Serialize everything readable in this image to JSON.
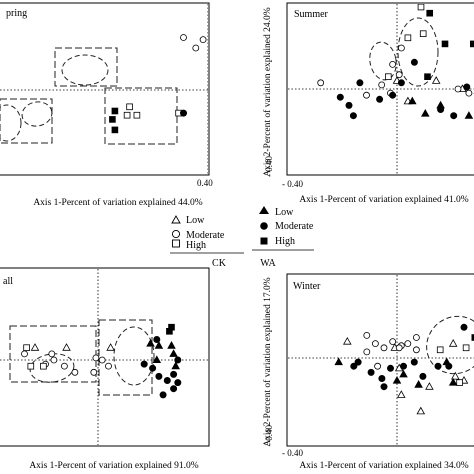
{
  "legend": {
    "rows": [
      {
        "ck": "Low",
        "wa": "Low"
      },
      {
        "ck": "Moderate",
        "wa": "Moderate"
      },
      {
        "ck": "High",
        "wa": "High"
      }
    ],
    "group_ck": "CK",
    "group_wa": "WA"
  },
  "chart_data": [
    {
      "type": "scatter",
      "title": "pring",
      "xlabel": "Axis 1-Percent of variation explained 44.0%",
      "ylabel": "",
      "xlim": [
        -0.44,
        0.44
      ],
      "ylim": [
        -0.42,
        0.44
      ],
      "x_ticks": [
        {
          "value": 0.4,
          "label": "0.40"
        }
      ],
      "y_ticks": [],
      "series": [
        {
          "name": "CK-Low",
          "marker": "triangle",
          "filled": false,
          "points": [
            [
              0.28,
              0.0
            ],
            [
              0.35,
              -0.04
            ],
            [
              0.29,
              -0.02
            ]
          ]
        },
        {
          "name": "CK-Moderate",
          "marker": "circle",
          "filled": false,
          "points": [
            [
              -0.02,
              0.24
            ],
            [
              -0.1,
              0.25
            ],
            [
              0.03,
              0.28
            ],
            [
              0.05,
              0.23
            ],
            [
              0.18,
              -0.08
            ],
            [
              0.22,
              -0.1
            ],
            [
              0.3,
              -0.1
            ],
            [
              0.33,
              -0.1
            ],
            [
              -0.05,
              0.2
            ],
            [
              0.17,
              -0.01
            ]
          ]
        },
        {
          "name": "CK-High",
          "marker": "square",
          "filled": false,
          "points": [
            [
              -0.12,
              -0.11
            ],
            [
              -0.29,
              -0.12
            ],
            [
              -0.33,
              -0.12
            ],
            [
              -0.32,
              -0.08
            ]
          ]
        },
        {
          "name": "WA-Low",
          "marker": "triangle",
          "filled": true,
          "points": [
            [
              0.15,
              0.01
            ],
            [
              0.17,
              0.0
            ],
            [
              0.21,
              -0.04
            ]
          ]
        },
        {
          "name": "WA-Moderate",
          "marker": "circle",
          "filled": true,
          "points": [
            [
              0.03,
              0.3
            ],
            [
              0.05,
              0.26
            ],
            [
              0.1,
              0.23
            ],
            [
              0.12,
              0.2
            ],
            [
              0.08,
              0.28
            ],
            [
              0.4,
              -0.22
            ],
            [
              -0.1,
              -0.11
            ]
          ]
        },
        {
          "name": "WA-High",
          "marker": "square",
          "filled": true,
          "points": [
            [
              0.07,
              0.28
            ],
            [
              -0.38,
              -0.19
            ],
            [
              -0.39,
              -0.14
            ],
            [
              -0.38,
              -0.1
            ]
          ]
        }
      ],
      "annotations": [
        "dashed boxes",
        "dashed ellipses"
      ]
    },
    {
      "type": "scatter",
      "title": "Summer",
      "xlabel": "Axis 1-Percent of variation explained 41.0%",
      "ylabel": "Axis 2-Percent of variation explained 24.0%",
      "xlim": [
        -0.42,
        0.46
      ],
      "ylim": [
        -0.42,
        0.44
      ],
      "x_ticks": [
        {
          "value": -0.4,
          "label": "- 0.40"
        }
      ],
      "y_ticks": [
        {
          "value": -0.4,
          "label": "- 0.40"
        }
      ],
      "series": [
        {
          "name": "CK-Low",
          "marker": "triangle",
          "filled": false,
          "points": [
            [
              0.05,
              -0.06
            ],
            [
              0.18,
              0.04
            ],
            [
              0.3,
              0.0
            ],
            [
              0.37,
              -0.01
            ],
            [
              0.0,
              0.04
            ]
          ]
        },
        {
          "name": "CK-Moderate",
          "marker": "circle",
          "filled": false,
          "points": [
            [
              -0.35,
              0.03
            ],
            [
              -0.07,
              0.02
            ],
            [
              -0.03,
              -0.02
            ],
            [
              -0.14,
              -0.03
            ],
            [
              -0.02,
              0.12
            ],
            [
              0.02,
              0.2
            ],
            [
              0.01,
              0.07
            ],
            [
              0.28,
              0.0
            ],
            [
              0.33,
              -0.02
            ]
          ]
        },
        {
          "name": "CK-High",
          "marker": "square",
          "filled": false,
          "points": [
            [
              0.05,
              0.25
            ],
            [
              0.11,
              0.4
            ],
            [
              0.12,
              0.27
            ],
            [
              -0.04,
              0.06
            ]
          ]
        },
        {
          "name": "WA-Low",
          "marker": "triangle",
          "filled": true,
          "points": [
            [
              0.13,
              -0.12
            ],
            [
              0.2,
              -0.08
            ],
            [
              0.33,
              -0.13
            ],
            [
              0.39,
              -0.05
            ],
            [
              0.07,
              -0.06
            ]
          ]
        },
        {
          "name": "WA-Moderate",
          "marker": "circle",
          "filled": true,
          "points": [
            [
              -0.22,
              -0.08
            ],
            [
              -0.17,
              0.03
            ],
            [
              -0.08,
              -0.05
            ],
            [
              -0.02,
              -0.03
            ],
            [
              0.02,
              0.03
            ],
            [
              0.08,
              0.13
            ],
            [
              0.2,
              -0.1
            ],
            [
              0.26,
              -0.13
            ],
            [
              0.32,
              0.01
            ],
            [
              0.43,
              -0.05
            ],
            [
              -0.26,
              -0.04
            ],
            [
              -0.2,
              -0.13
            ]
          ]
        },
        {
          "name": "WA-High",
          "marker": "square",
          "filled": true,
          "points": [
            [
              0.15,
              0.37
            ],
            [
              0.35,
              0.22
            ],
            [
              0.22,
              0.22
            ],
            [
              0.14,
              0.06
            ]
          ]
        }
      ],
      "annotations": [
        "dashed ellipses"
      ]
    },
    {
      "type": "scatter",
      "title": "all",
      "xlabel": "Axis 1-Percent of variation explained 91.0%",
      "ylabel": "",
      "xlim": [
        -0.45,
        0.46
      ],
      "ylim": [
        -0.42,
        0.44
      ],
      "x_ticks": [],
      "y_ticks": [],
      "series": [
        {
          "name": "CK-Low",
          "marker": "triangle",
          "filled": false,
          "points": [
            [
              -0.3,
              0.06
            ],
            [
              0.06,
              0.06
            ],
            [
              -0.15,
              0.06
            ]
          ]
        },
        {
          "name": "CK-Moderate",
          "marker": "circle",
          "filled": false,
          "points": [
            [
              -0.35,
              0.03
            ],
            [
              -0.21,
              0.0
            ],
            [
              -0.16,
              -0.03
            ],
            [
              -0.11,
              -0.06
            ],
            [
              -0.02,
              -0.06
            ],
            [
              -0.01,
              0.01
            ],
            [
              0.02,
              0.0
            ],
            [
              0.05,
              -0.03
            ],
            [
              -0.25,
              -0.02
            ],
            [
              -0.22,
              0.03
            ]
          ]
        },
        {
          "name": "CK-High",
          "marker": "square",
          "filled": false,
          "points": [
            [
              -0.34,
              0.06
            ],
            [
              -0.32,
              -0.03
            ],
            [
              -0.26,
              -0.03
            ]
          ]
        },
        {
          "name": "WA-Low",
          "marker": "triangle",
          "filled": true,
          "points": [
            [
              0.25,
              0.08
            ],
            [
              0.29,
              0.07
            ],
            [
              0.35,
              0.07
            ],
            [
              0.36,
              0.03
            ],
            [
              0.28,
              0.0
            ],
            [
              0.37,
              -0.03
            ]
          ]
        },
        {
          "name": "WA-Moderate",
          "marker": "circle",
          "filled": true,
          "points": [
            [
              0.22,
              -0.02
            ],
            [
              0.26,
              -0.04
            ],
            [
              0.29,
              -0.08
            ],
            [
              0.33,
              -0.1
            ],
            [
              0.36,
              -0.07
            ],
            [
              0.38,
              -0.11
            ],
            [
              0.38,
              0.0
            ],
            [
              0.28,
              0.1
            ],
            [
              0.31,
              -0.17
            ],
            [
              0.36,
              -0.14
            ]
          ]
        },
        {
          "name": "WA-High",
          "marker": "square",
          "filled": true,
          "points": [
            [
              0.34,
              0.14
            ],
            [
              0.35,
              0.16
            ]
          ]
        }
      ],
      "annotations": [
        "dashed boxes",
        "dashed ellipses"
      ]
    },
    {
      "type": "scatter",
      "title": "Winter",
      "xlabel": "Axis 1-Percent of variation explained 34.0%",
      "ylabel": "Axis 2-Percent of variation explained 17.0%",
      "xlim": [
        -0.42,
        0.46
      ],
      "ylim": [
        -0.42,
        0.44
      ],
      "x_ticks": [
        {
          "value": -0.4,
          "label": "- 0.40"
        }
      ],
      "y_ticks": [
        {
          "value": -0.4,
          "label": "- 0.40"
        }
      ],
      "series": [
        {
          "name": "CK-Low",
          "marker": "triangle",
          "filled": false,
          "points": [
            [
              -0.23,
              0.08
            ],
            [
              -0.01,
              0.05
            ],
            [
              0.01,
              -0.05
            ],
            [
              0.02,
              -0.18
            ],
            [
              0.15,
              -0.14
            ],
            [
              0.26,
              0.07
            ],
            [
              0.27,
              -0.09
            ],
            [
              0.31,
              -0.11
            ],
            [
              0.41,
              -0.04
            ],
            [
              0.11,
              -0.26
            ]
          ]
        },
        {
          "name": "CK-Moderate",
          "marker": "circle",
          "filled": false,
          "points": [
            [
              -0.14,
              0.03
            ],
            [
              -0.1,
              0.07
            ],
            [
              -0.06,
              0.05
            ],
            [
              0.02,
              0.06
            ],
            [
              0.05,
              0.07
            ],
            [
              0.09,
              0.1
            ],
            [
              0.09,
              0.04
            ],
            [
              -0.14,
              0.11
            ],
            [
              -0.09,
              -0.04
            ],
            [
              -0.02,
              0.08
            ],
            [
              0.01,
              0.05
            ]
          ]
        },
        {
          "name": "CK-High",
          "marker": "square",
          "filled": false,
          "points": [
            [
              0.2,
              0.04
            ],
            [
              0.29,
              -0.12
            ],
            [
              0.32,
              0.05
            ],
            [
              0.42,
              -0.03
            ]
          ]
        },
        {
          "name": "WA-Low",
          "marker": "triangle",
          "filled": true,
          "points": [
            [
              -0.27,
              -0.02
            ],
            [
              0.0,
              -0.11
            ],
            [
              0.03,
              -0.08
            ],
            [
              0.23,
              -0.02
            ],
            [
              0.26,
              -0.12
            ],
            [
              0.1,
              -0.13
            ]
          ]
        },
        {
          "name": "WA-Moderate",
          "marker": "circle",
          "filled": true,
          "points": [
            [
              -0.18,
              -0.02
            ],
            [
              -0.12,
              -0.07
            ],
            [
              -0.07,
              -0.1
            ],
            [
              -0.03,
              -0.05
            ],
            [
              0.03,
              -0.04
            ],
            [
              0.08,
              -0.02
            ],
            [
              0.12,
              -0.09
            ],
            [
              0.19,
              -0.04
            ],
            [
              0.24,
              -0.04
            ],
            [
              0.31,
              0.15
            ],
            [
              -0.2,
              -0.04
            ],
            [
              -0.06,
              -0.14
            ]
          ]
        },
        {
          "name": "WA-High",
          "marker": "square",
          "filled": true,
          "points": [
            [
              0.36,
              0.1
            ],
            [
              0.4,
              0.12
            ],
            [
              0.43,
              0.07
            ]
          ]
        }
      ],
      "annotations": [
        "dashed ellipse"
      ]
    }
  ]
}
